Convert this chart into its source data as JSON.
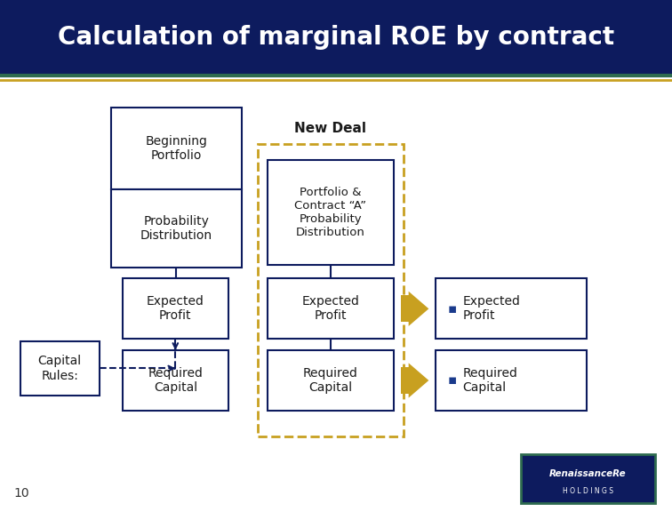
{
  "title": "Calculation of marginal ROE by contract",
  "title_bg": "#0d1b5e",
  "title_color": "#ffffff",
  "slide_bg": "#ffffff",
  "accent_line_color1": "#2e6b4f",
  "accent_line_color2": "#c8a020",
  "box_border_color": "#0d1b5e",
  "box_fill": "#ffffff",
  "dashed_box_color": "#c8a020",
  "arrow_color": "#c8a020",
  "dashed_arrow_color": "#0d1b5e",
  "bullet_color": "#1a3a8c",
  "page_number": "10",
  "new_deal_label": "New Deal",
  "logo_bg": "#0d1b5e",
  "logo_border": "#2e6b4f"
}
